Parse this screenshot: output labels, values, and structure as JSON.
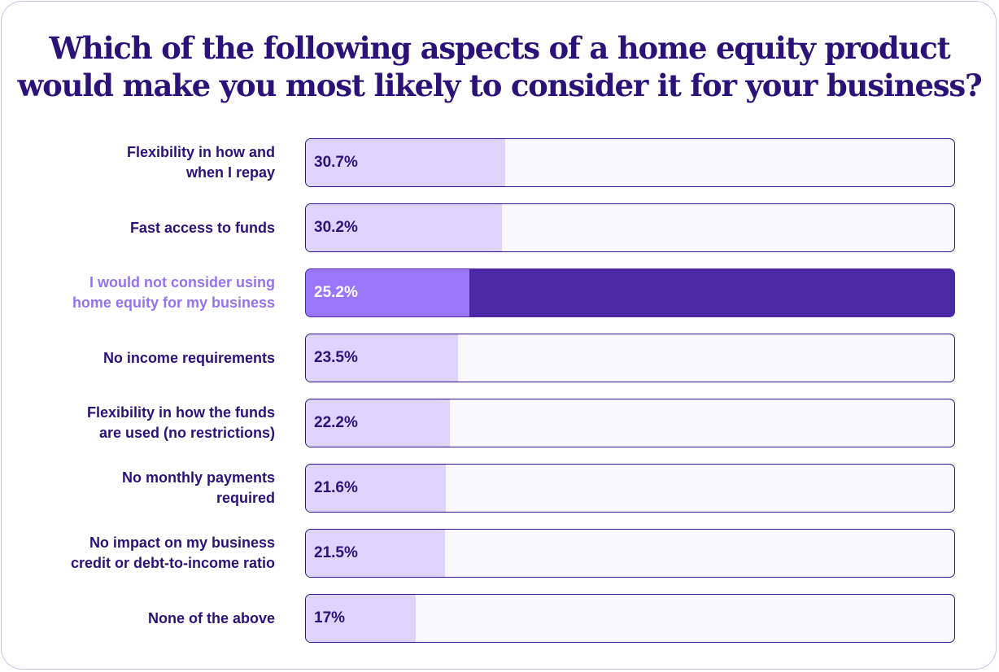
{
  "chart_data": {
    "type": "bar",
    "orientation": "horizontal",
    "title_lines": [
      "Which of the following aspects of a home equity product",
      "would make you most likely to consider it for your business?"
    ],
    "unit": "%",
    "xlim": [
      0,
      100
    ],
    "grid": false,
    "legend": "none",
    "categories": [
      {
        "lines": [
          "Flexibility in how and",
          "when I repay"
        ],
        "value": 30.7,
        "label": "30.7%"
      },
      {
        "lines": [
          "Fast access to funds"
        ],
        "value": 30.2,
        "label": "30.2%"
      },
      {
        "lines": [
          "I would not consider using",
          "home equity for my business"
        ],
        "value": 25.2,
        "label": "25.2%",
        "highlight": true
      },
      {
        "lines": [
          "No income requirements"
        ],
        "value": 23.5,
        "label": "23.5%"
      },
      {
        "lines": [
          "Flexibility in how the funds",
          "are used (no restrictions)"
        ],
        "value": 22.2,
        "label": "22.2%"
      },
      {
        "lines": [
          "No monthly payments",
          "required"
        ],
        "value": 21.6,
        "label": "21.6%"
      },
      {
        "lines": [
          "No impact on my business",
          "credit or debt-to-income ratio"
        ],
        "value": 21.5,
        "label": "21.5%"
      },
      {
        "lines": [
          "None of the above"
        ],
        "value": 17,
        "label": "17%"
      }
    ]
  },
  "colors": {
    "text": "#2b1278",
    "highlight_label": "#9572f2",
    "fill": "#ddd3fd",
    "track": "#f8f7fe",
    "highlight_fill": "#9a76fb",
    "highlight_track": "#4b2aa8",
    "card_border": "#cbc2f2"
  }
}
